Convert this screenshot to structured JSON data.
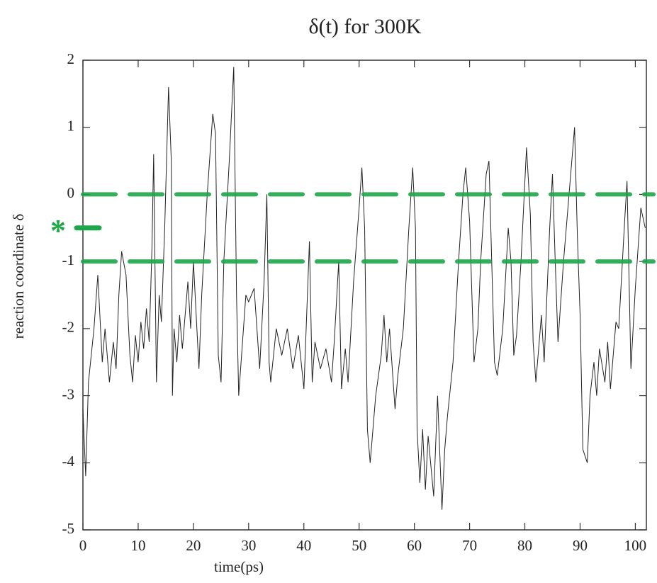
{
  "chart_data": {
    "type": "line",
    "title": "δ(t) for 300K",
    "x_label": "time(ps)",
    "y_label": "reaction coordinate δ",
    "xlim": [
      0,
      102
    ],
    "ylim": [
      -5,
      2
    ],
    "xticks": [
      0,
      10,
      20,
      30,
      40,
      50,
      60,
      70,
      80,
      90,
      100
    ],
    "yticks": [
      -5,
      -4,
      -3,
      -2,
      -1,
      0,
      1,
      2
    ],
    "series": [
      {
        "color": "#222222",
        "x": [
          0,
          0.5,
          1,
          2,
          2.7,
          3.5,
          4,
          4.8,
          5.5,
          6,
          6.5,
          7,
          7.8,
          8.5,
          9,
          9.5,
          10,
          10.5,
          11,
          11.5,
          12,
          12.5,
          12.8,
          13.3,
          13.8,
          14.2,
          14.8,
          15.5,
          16,
          16.2,
          16.5,
          17,
          17.5,
          18,
          19,
          19.5,
          20,
          21,
          21.5,
          22.5,
          23.5,
          24,
          24.5,
          25,
          25.5,
          26.5,
          27.3,
          27.8,
          28.2,
          28.8,
          29.5,
          30,
          31,
          32,
          32.8,
          33.3,
          33.7,
          34,
          35,
          36,
          37,
          38,
          39,
          40,
          41,
          41.5,
          42,
          43,
          44,
          45,
          45.5,
          46.3,
          46.8,
          47.5,
          48,
          49,
          50,
          50.5,
          51,
          51.5,
          52,
          52.5,
          53,
          54,
          54.5,
          55,
          55.5,
          56.5,
          57,
          58,
          59,
          59.7,
          60.2,
          60.5,
          61,
          61.5,
          62,
          62.5,
          63.5,
          64.2,
          65,
          65.5,
          66,
          67,
          68,
          68.8,
          69.3,
          70,
          70.8,
          71.5,
          72,
          73,
          73.5,
          74.5,
          75,
          76,
          77,
          77.5,
          78,
          78.5,
          79.3,
          80.3,
          81,
          81.5,
          82,
          83,
          83.5,
          84.5,
          85,
          85.5,
          86,
          87,
          88,
          89,
          89.5,
          90,
          90.5,
          91.3,
          91.8,
          92.5,
          93,
          93.5,
          94.5,
          95,
          95.5,
          96.5,
          97,
          98,
          98.5,
          99.2,
          100,
          101,
          101.8
        ],
        "values": [
          -3.2,
          -4.2,
          -2.8,
          -2.0,
          -1.2,
          -2.5,
          -2.0,
          -2.8,
          -2.2,
          -2.6,
          -1.5,
          -0.85,
          -1.2,
          -2.4,
          -2.8,
          -2.1,
          -2.5,
          -1.9,
          -2.3,
          -1.7,
          -2.2,
          -0.8,
          0.6,
          -2.8,
          -1.5,
          -1.9,
          -0.5,
          1.6,
          0.5,
          -3.0,
          -2.0,
          -2.5,
          -1.8,
          -2.3,
          -1.3,
          -2.0,
          -1.0,
          -2.6,
          -1.5,
          0.0,
          1.2,
          0.9,
          -2.4,
          -2.8,
          -1.0,
          0.5,
          1.9,
          -1.5,
          -3.0,
          -2.3,
          -1.5,
          -1.6,
          -1.4,
          -2.6,
          -1.3,
          0.0,
          -2.5,
          -2.8,
          -2.0,
          -2.4,
          -2.0,
          -2.6,
          -2.1,
          -2.9,
          -0.7,
          -2.8,
          -2.2,
          -2.6,
          -2.3,
          -2.8,
          -2.2,
          -1.0,
          -2.9,
          -2.3,
          -2.8,
          -1.3,
          -0.2,
          0.4,
          -0.5,
          -3.5,
          -4.0,
          -3.5,
          -3.0,
          -2.4,
          -1.8,
          -2.5,
          -2.0,
          -3.2,
          -2.7,
          -2.0,
          -0.5,
          0.4,
          -0.5,
          -3.5,
          -4.3,
          -3.5,
          -4.4,
          -3.6,
          -4.5,
          -3.0,
          -4.7,
          -3.8,
          -3.3,
          -2.5,
          -1.0,
          0.0,
          0.4,
          -0.4,
          -2.5,
          -2.0,
          -1.0,
          0.3,
          0.5,
          -2.5,
          -2.7,
          -2.0,
          -0.5,
          -1.0,
          -2.4,
          -2.1,
          -1.0,
          0.7,
          -0.3,
          -2.2,
          -2.8,
          -1.8,
          -2.5,
          -0.5,
          0.3,
          -1.0,
          -2.2,
          -1.0,
          0.0,
          1.0,
          -0.6,
          -1.8,
          -3.8,
          -4.0,
          -3.0,
          -2.5,
          -3.0,
          -2.3,
          -2.8,
          -2.2,
          -2.9,
          -1.9,
          -2.0,
          -0.5,
          0.2,
          -2.6,
          -1.4,
          -0.2,
          -0.5
        ]
      }
    ],
    "reference_lines": {
      "color": "#1fa64a",
      "values": [
        0,
        -1
      ]
    },
    "marker": {
      "label": "*",
      "value": -0.5,
      "color": "#1fa64a"
    }
  }
}
